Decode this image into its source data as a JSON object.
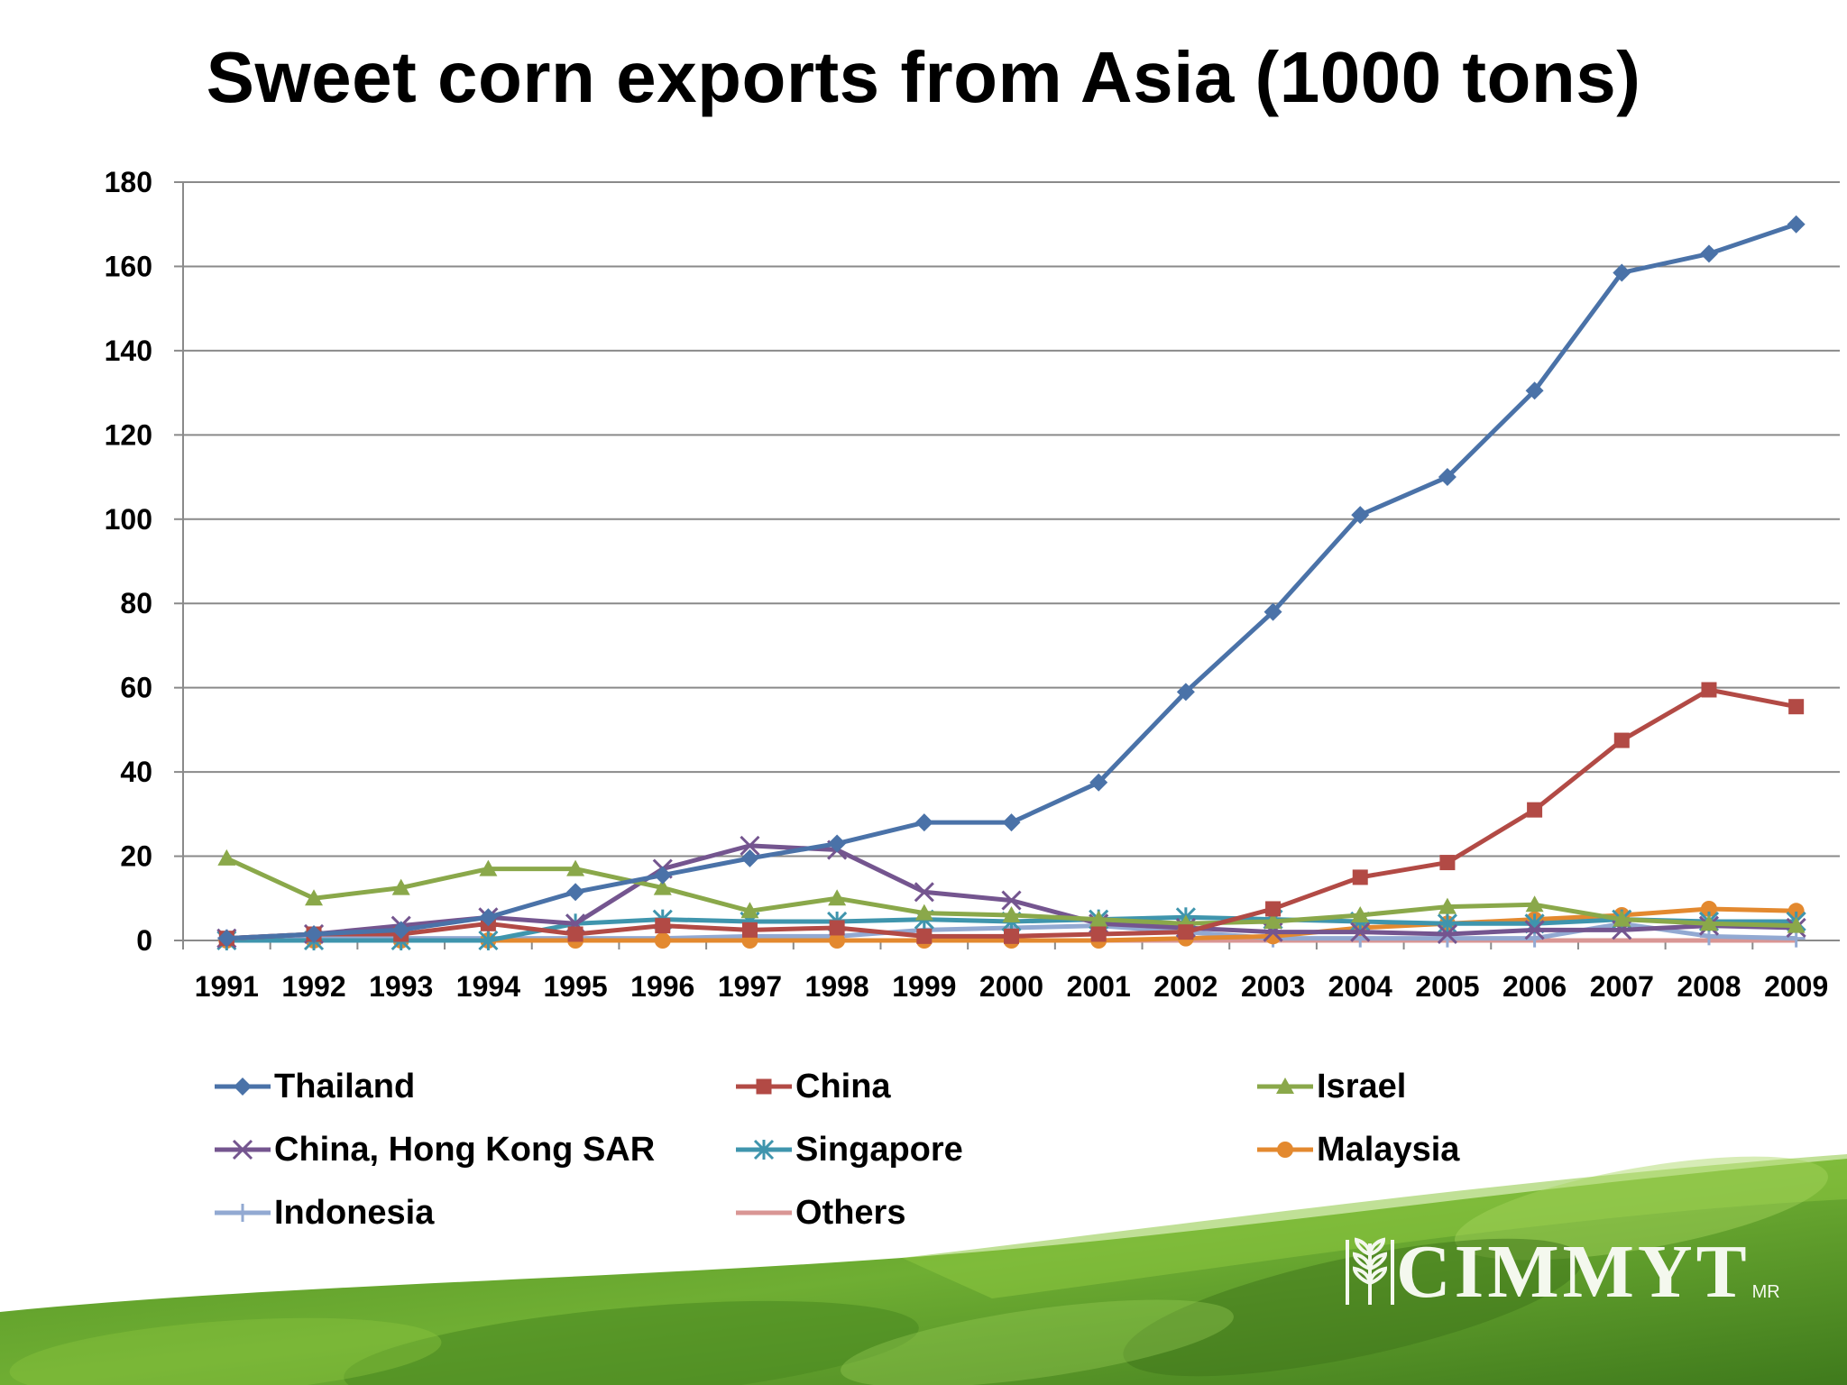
{
  "slide": {
    "title": "Sweet corn exports from Asia (1000 tons)",
    "logo_text": "CIMMYT",
    "logo_mark": "MR",
    "colors": {
      "green_dark": "#3f7a1c",
      "green_mid": "#5f9e2b",
      "green_light": "#8cc63f"
    }
  },
  "chart_data": {
    "type": "line",
    "title": "Sweet corn exports from Asia (1000 tons)",
    "xlabel": "",
    "ylabel": "",
    "ylim": [
      0,
      180
    ],
    "yticks": [
      0,
      20,
      40,
      60,
      80,
      100,
      120,
      140,
      160,
      180
    ],
    "grid": "horizontal",
    "legend_position": "bottom",
    "categories": [
      "1991",
      "1992",
      "1993",
      "1994",
      "1995",
      "1996",
      "1997",
      "1998",
      "1999",
      "2000",
      "2001",
      "2002",
      "2003",
      "2004",
      "2005",
      "2006",
      "2007",
      "2008",
      "2009"
    ],
    "series": [
      {
        "name": "Thailand",
        "color": "#4a72a8",
        "marker": "diamond",
        "values": [
          0.5,
          1.5,
          2.5,
          5.5,
          11.5,
          15.5,
          19.5,
          23,
          28,
          28,
          37.5,
          59,
          78,
          101,
          110,
          130.5,
          158.5,
          163,
          170
        ]
      },
      {
        "name": "China",
        "color": "#b24a45",
        "marker": "square",
        "values": [
          0.5,
          1.5,
          1.5,
          4,
          1.5,
          3.5,
          2.5,
          3,
          1,
          1,
          1.5,
          2,
          7.5,
          15,
          18.5,
          31,
          47.5,
          59.5,
          55.5
        ]
      },
      {
        "name": "Israel",
        "color": "#8aa84a",
        "marker": "triangle",
        "values": [
          19.5,
          10,
          12.5,
          17,
          17,
          12.5,
          7,
          10,
          6.5,
          6,
          5,
          4,
          4.5,
          6,
          8,
          8.5,
          5,
          4,
          3.5
        ]
      },
      {
        "name": "China, Hong Kong SAR",
        "color": "#74558f",
        "marker": "x",
        "values": [
          0.5,
          1.5,
          3.5,
          5.5,
          4,
          17,
          22.5,
          21.5,
          11.5,
          9.5,
          4,
          3,
          2,
          2,
          1.5,
          2.5,
          2.5,
          3.5,
          3
        ]
      },
      {
        "name": "Singapore",
        "color": "#3f95ad",
        "marker": "star",
        "values": [
          0,
          0,
          0,
          0,
          4,
          5,
          4.5,
          4.5,
          5,
          4.5,
          5,
          5.5,
          5,
          4.5,
          4,
          4,
          5,
          4.5,
          4.5
        ]
      },
      {
        "name": "Malaysia",
        "color": "#e3892f",
        "marker": "circle",
        "values": [
          0,
          0,
          0,
          0,
          0,
          0,
          0,
          0,
          0,
          0,
          0,
          0.5,
          1,
          3,
          4,
          5,
          6,
          7.5,
          7
        ]
      },
      {
        "name": "Indonesia",
        "color": "#92a9d2",
        "marker": "plus",
        "values": [
          0.5,
          1,
          0.5,
          0.5,
          0.5,
          0.5,
          1,
          1,
          2.5,
          3,
          3.5,
          2,
          0.5,
          0.5,
          0.5,
          0.5,
          4,
          1,
          0.5
        ]
      },
      {
        "name": "Others",
        "color": "#d99694",
        "marker": "none",
        "values": [
          0,
          0,
          0,
          0,
          0,
          0,
          0,
          0,
          0,
          0,
          0,
          0,
          0,
          0,
          0,
          0,
          0,
          0,
          0
        ]
      }
    ]
  }
}
